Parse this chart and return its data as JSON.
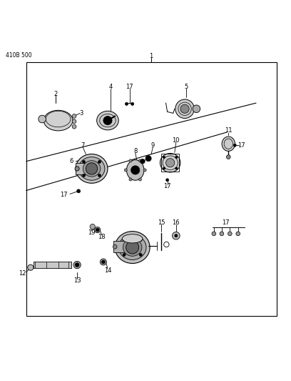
{
  "title_code": "410B 500",
  "bg_color": "#ffffff",
  "line_color": "#000000",
  "fig_width": 4.08,
  "fig_height": 5.33,
  "dpi": 100,
  "note_text": "410B 500"
}
